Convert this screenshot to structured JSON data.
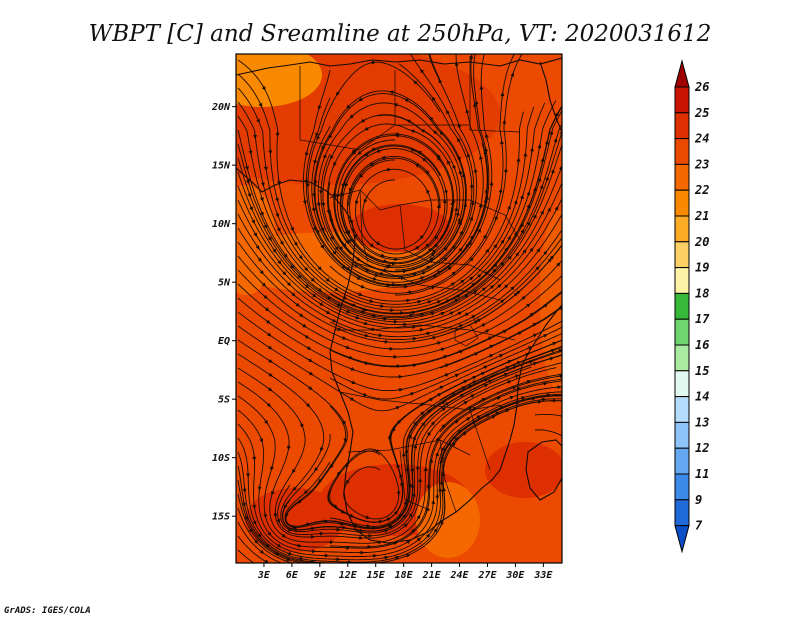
{
  "credit": "GrADS: IGES/COLA",
  "chart_data": {
    "type": "heatmap",
    "title": "WBPT [C] and Sreamline at 250hPa, VT: 2020031612",
    "variable": "Wet-bulb potential temperature (C)",
    "overlay": "streamlines",
    "level": "250hPa",
    "valid_time": "2020031612",
    "x_ticks": [
      "3E",
      "6E",
      "9E",
      "12E",
      "15E",
      "18E",
      "21E",
      "24E",
      "27E",
      "30E",
      "33E"
    ],
    "x_tick_values": [
      3,
      6,
      9,
      12,
      15,
      18,
      21,
      24,
      27,
      30,
      33
    ],
    "y_ticks": [
      "20N",
      "15N",
      "10N",
      "5N",
      "EQ",
      "5S",
      "10S",
      "15S"
    ],
    "y_tick_values": [
      20,
      15,
      10,
      5,
      0,
      -5,
      -10,
      -15
    ],
    "xlim": [
      0,
      35
    ],
    "ylim": [
      -19,
      24.5
    ],
    "colorbar": {
      "labels": [
        "26",
        "25",
        "24",
        "23",
        "22",
        "21",
        "20",
        "19",
        "18",
        "17",
        "16",
        "15",
        "14",
        "13",
        "12",
        "11",
        "9",
        "7"
      ],
      "colors": [
        "#a00000",
        "#c81400",
        "#dd2f00",
        "#ec4a00",
        "#f56800",
        "#f98a00",
        "#fbab26",
        "#fdd065",
        "#fef2a6",
        "#38b838",
        "#6fd66f",
        "#a8eaa0",
        "#e0f8f0",
        "#b4dcfc",
        "#8ec4f8",
        "#64a8f2",
        "#3c8ae8",
        "#1f6ad8",
        "#0d4ec8"
      ]
    }
  }
}
